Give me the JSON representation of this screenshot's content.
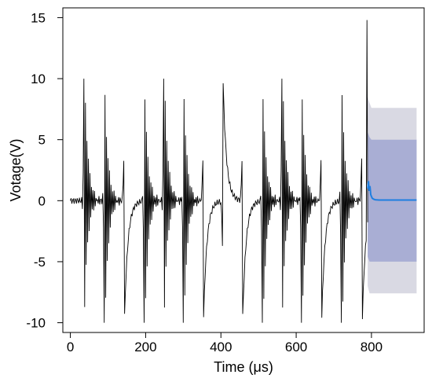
{
  "chart_data": {
    "type": "line",
    "title": "",
    "xlabel": "Time (μs)",
    "ylabel": "Votage(V)",
    "xlim": [
      -20,
      940
    ],
    "ylim": [
      -10.8,
      15.8
    ],
    "x_ticks": [
      0,
      200,
      400,
      600,
      800
    ],
    "y_ticks": [
      -10,
      -5,
      0,
      5,
      10,
      15
    ],
    "grid": false,
    "legend": "none",
    "series": [
      {
        "role": "observed signal",
        "color": "#000000",
        "x_range": [
          0,
          790
        ],
        "sampling_interval": 2,
        "burst_times": [
          36,
          90,
          143,
          196,
          248,
          300,
          353,
          405,
          457,
          510,
          562,
          614,
          667,
          720,
          775
        ],
        "burst_signs": [
          1,
          -1,
          1,
          -1,
          1,
          -1,
          1,
          -1,
          1,
          -1,
          1,
          -1,
          1,
          -1,
          1
        ],
        "burst_peak": 10,
        "final_spike_peak": 14.8,
        "final_spike_time": 788
      },
      {
        "role": "forecast mean",
        "color": "#1f7fe0",
        "x": [
          790,
          792,
          794,
          796,
          798,
          800,
          802,
          806,
          810,
          820,
          840,
          870,
          900,
          920
        ],
        "y": [
          1.0,
          1.6,
          0.8,
          1.2,
          0.5,
          0.35,
          0.2,
          0.12,
          0.08,
          0.05,
          0.05,
          0.05,
          0.05,
          0.05
        ]
      }
    ],
    "bands": [
      {
        "role": "outer prediction interval",
        "color": "#d9d9e3",
        "x": [
          790,
          795,
          800,
          920
        ],
        "upper": [
          8.5,
          8.0,
          7.6,
          7.6
        ],
        "lower": [
          -7.0,
          -7.6,
          -7.6,
          -7.6
        ]
      },
      {
        "role": "inner prediction interval",
        "color": "#a9aed4",
        "x": [
          790,
          795,
          800,
          920
        ],
        "upper": [
          5.6,
          5.2,
          5.0,
          5.0
        ],
        "lower": [
          -4.6,
          -5.0,
          -5.0,
          -5.0
        ]
      }
    ]
  }
}
